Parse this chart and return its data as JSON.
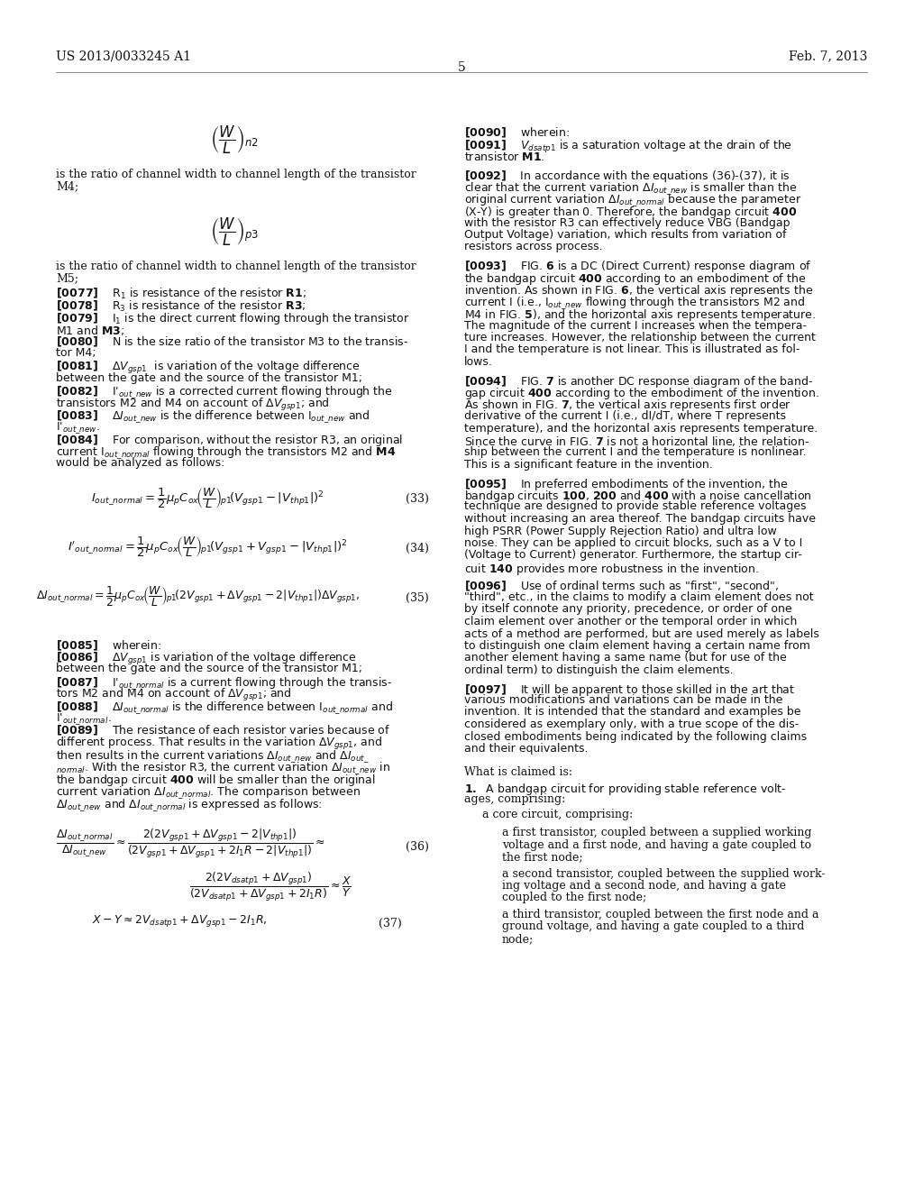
{
  "background_color": "#ffffff",
  "header_left": "US 2013/0033245 A1",
  "header_center": "5",
  "header_right": "Feb. 7, 2013",
  "fig_width": 10.24,
  "fig_height": 13.2,
  "dpi": 100
}
